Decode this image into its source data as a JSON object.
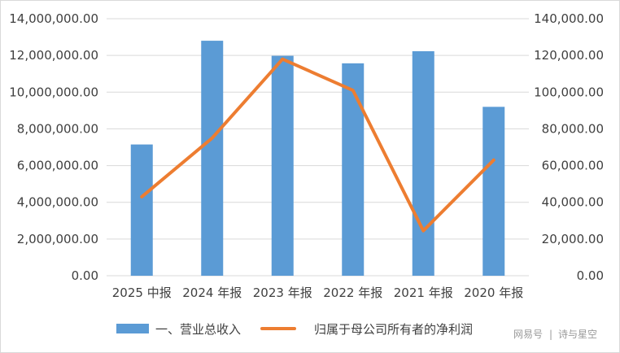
{
  "chart_data": {
    "type": "bar+line",
    "categories": [
      "2025 中报",
      "2024 年报",
      "2023 年报",
      "2022 年报",
      "2021 年报",
      "2020 年报"
    ],
    "series": [
      {
        "name": "一、营业总收入",
        "type": "bar",
        "axis": "left",
        "color": "#5b9bd5",
        "values": [
          7150000,
          12800000,
          11980000,
          11570000,
          12230000,
          9200000
        ]
      },
      {
        "name": "归属于母公司所有者的净利润",
        "type": "line",
        "axis": "right",
        "color": "#ed7d31",
        "values": [
          43000,
          75000,
          118000,
          101000,
          24500,
          63000
        ]
      }
    ],
    "y_left": {
      "ylim": [
        0,
        14000000
      ],
      "ticks": [
        0,
        2000000,
        4000000,
        6000000,
        8000000,
        10000000,
        12000000,
        14000000
      ],
      "tick_labels": [
        "0.00",
        "2,000,000.00",
        "4,000,000.00",
        "6,000,000.00",
        "8,000,000.00",
        "10,000,000.00",
        "12,000,000.00",
        "14,000,000.00"
      ]
    },
    "y_right": {
      "ylim": [
        0,
        140000
      ],
      "ticks": [
        0,
        20000,
        40000,
        60000,
        80000,
        100000,
        120000,
        140000
      ],
      "tick_labels": [
        "0.00",
        "20,000.00",
        "40,000.00",
        "60,000.00",
        "80,000.00",
        "100,000.00",
        "120,000.00",
        "140,000.00"
      ]
    },
    "grid": true,
    "legend_position": "bottom",
    "title": "",
    "xlabel": "",
    "ylabel": ""
  },
  "watermark": {
    "source": "网易号",
    "separator": "|",
    "author": "诗与星空"
  },
  "colors": {
    "grid": "#d9d9d9",
    "text": "#404040",
    "frame": "#d9d9d9"
  }
}
